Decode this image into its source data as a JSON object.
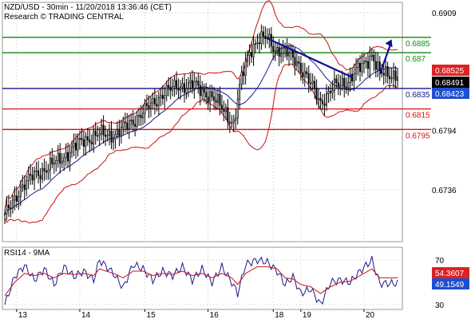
{
  "header": {
    "title": "NZD/USD - 30min - 11/20/2018 13:36:46 (CET)",
    "subtitle": "Research © TRADING CENTRAL"
  },
  "colors": {
    "background": "#ffffff",
    "grid": "#c8c8c8",
    "candles": "#000000",
    "bollinger": "#cc1111",
    "moving_average": "#1a1a8c",
    "resistance": "#118811",
    "pivot": "#101090",
    "support": "#dd1111",
    "rsi_line": "#1a1a8c",
    "rsi_ma": "#cc1111",
    "arrow": "#101090",
    "price_badge_red": "#dd2222",
    "price_badge_black": "#000000",
    "price_badge_blue": "#1f4fd0"
  },
  "chart_data": [
    {
      "type": "candlestick",
      "instrument": "NZD/USD",
      "timeframe": "30min",
      "x_tick_labels": [
        "13",
        "14",
        "15",
        "16",
        "18",
        "19",
        "20"
      ],
      "y_tick_labels": [
        "0.6909",
        "0.6794",
        "0.6736"
      ],
      "ylim": [
        0.6705,
        0.6915
      ],
      "grid": true,
      "levels": [
        {
          "value": 0.6885,
          "label": "0.6885",
          "kind": "resistance",
          "color": "#118811"
        },
        {
          "value": 0.687,
          "label": "0.687",
          "kind": "resistance",
          "color": "#118811"
        },
        {
          "value": 0.6835,
          "label": "0.6835",
          "kind": "pivot",
          "color": "#101090"
        },
        {
          "value": 0.6815,
          "label": "0.6815",
          "kind": "support",
          "color": "#dd1111"
        },
        {
          "value": 0.6795,
          "label": "0.6795",
          "kind": "support",
          "color": "#dd1111"
        }
      ],
      "price_tags": [
        {
          "value": 0.68525,
          "label": "0.68525",
          "color": "#dd2222"
        },
        {
          "value": 0.68491,
          "label": "0.68491",
          "color": "#000000"
        },
        {
          "value": 0.68423,
          "label": "0.68423",
          "color": "#1f4fd0"
        }
      ],
      "trendline": {
        "from": {
          "bar": 133,
          "price": 0.6884
        },
        "to": {
          "bar": 176,
          "price": 0.6846
        }
      },
      "forecast_arrow": {
        "from": {
          "bar": 190,
          "price": 0.6849
        },
        "to": {
          "bar": 196,
          "price": 0.6883
        }
      },
      "close_path": {
        "bars": [
          0,
          8,
          16,
          24,
          32,
          40,
          48,
          56,
          64,
          72,
          80,
          88,
          96,
          104,
          112,
          116,
          120,
          124,
          128,
          133,
          137,
          142,
          148,
          154,
          160,
          164,
          168,
          174,
          180,
          186,
          190
        ],
        "close": [
          0.671,
          0.6738,
          0.6752,
          0.676,
          0.6772,
          0.6785,
          0.679,
          0.679,
          0.6802,
          0.6815,
          0.683,
          0.6838,
          0.6838,
          0.6828,
          0.6812,
          0.68,
          0.6845,
          0.6872,
          0.6882,
          0.6884,
          0.6874,
          0.687,
          0.6862,
          0.6842,
          0.6822,
          0.683,
          0.6838,
          0.6843,
          0.6855,
          0.6868,
          0.6849
        ]
      }
    },
    {
      "type": "line",
      "title": "RSI14 - 9MA",
      "y_tick_labels": [
        "70",
        "30"
      ],
      "ylim": [
        25,
        80
      ],
      "grid": true,
      "series": [
        {
          "bars": [
            0,
            5,
            10,
            15,
            20,
            25,
            30,
            35,
            40,
            45,
            48,
            55,
            60,
            65,
            70,
            75,
            80,
            85,
            90,
            95,
            100,
            105,
            110,
            115,
            118,
            122,
            128,
            133,
            138,
            142,
            146,
            150,
            155,
            160,
            165,
            170,
            175,
            180,
            186,
            190
          ],
          "values": [
            30,
            55,
            65,
            52,
            62,
            48,
            64,
            55,
            60,
            52,
            70,
            58,
            45,
            66,
            62,
            52,
            60,
            56,
            64,
            52,
            62,
            50,
            64,
            50,
            40,
            66,
            70,
            68,
            60,
            48,
            55,
            40,
            44,
            30,
            50,
            52,
            50,
            60,
            70,
            49
          ],
          "color": "#1a1a8c"
        },
        {
          "bars": [
            0,
            5,
            10,
            15,
            20,
            25,
            30,
            35,
            40,
            45,
            48,
            55,
            60,
            65,
            70,
            75,
            80,
            85,
            90,
            95,
            100,
            105,
            110,
            115,
            118,
            122,
            128,
            133,
            138,
            142,
            146,
            150,
            155,
            160,
            165,
            170,
            175,
            180,
            186,
            190
          ],
          "values": [
            38,
            50,
            58,
            56,
            58,
            54,
            58,
            57,
            58,
            56,
            62,
            58,
            54,
            60,
            60,
            56,
            58,
            57,
            60,
            56,
            58,
            54,
            58,
            54,
            48,
            58,
            64,
            64,
            62,
            54,
            53,
            48,
            46,
            40,
            46,
            50,
            51,
            56,
            62,
            54
          ],
          "color": "#cc1111"
        }
      ],
      "price_tags": [
        {
          "value": 54.3607,
          "label": "54.3607",
          "color": "#dd2222"
        },
        {
          "value": 49.1549,
          "label": "49.1549",
          "color": "#1f4fd0"
        }
      ]
    }
  ]
}
